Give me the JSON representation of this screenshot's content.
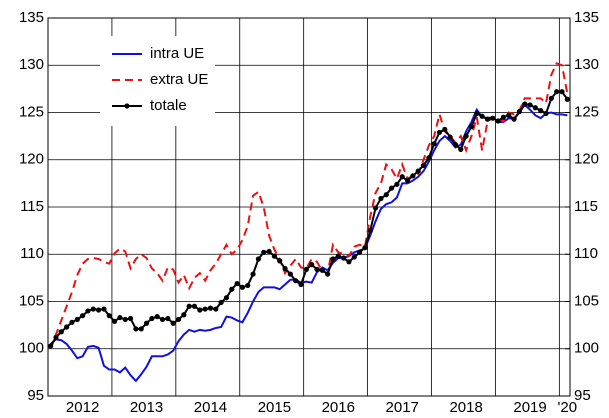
{
  "chart_data": {
    "type": "line",
    "categories": [
      null,
      null,
      null,
      null,
      null,
      null,
      "2012",
      null,
      null,
      null,
      null,
      null,
      null,
      null,
      null,
      null,
      null,
      null,
      "2013",
      null,
      null,
      null,
      null,
      null,
      null,
      null,
      null,
      null,
      null,
      null,
      "2014",
      null,
      null,
      null,
      null,
      null,
      null,
      null,
      null,
      null,
      null,
      null,
      "2015",
      null,
      null,
      null,
      null,
      null,
      null,
      null,
      null,
      null,
      null,
      null,
      "2016",
      null,
      null,
      null,
      null,
      null,
      null,
      null,
      null,
      null,
      null,
      null,
      "2017",
      null,
      null,
      null,
      null,
      null,
      null,
      null,
      null,
      null,
      null,
      null,
      "2018",
      null,
      null,
      null,
      null,
      null,
      null,
      null,
      null,
      null,
      null,
      null,
      "2019",
      null,
      null,
      null,
      null,
      null,
      null,
      "'20"
    ],
    "series": [
      {
        "name": "intra UE",
        "color": "#1010e0",
        "line_style": "solid",
        "marker": "none",
        "values": [
          100.5,
          101.0,
          100.9,
          100.5,
          99.8,
          99.0,
          99.2,
          100.2,
          100.3,
          100.1,
          98.2,
          97.8,
          97.8,
          97.5,
          98.0,
          97.2,
          96.6,
          97.3,
          98.1,
          99.2,
          99.2,
          99.2,
          99.4,
          99.8,
          100.8,
          101.5,
          102.0,
          101.8,
          102.0,
          101.9,
          102.0,
          102.2,
          102.3,
          103.4,
          103.3,
          103.0,
          102.8,
          103.8,
          105.0,
          106.0,
          106.5,
          106.5,
          106.5,
          106.3,
          106.8,
          107.3,
          107.3,
          107.0,
          107.1,
          107.0,
          108.1,
          108.6,
          108.3,
          109.1,
          109.6,
          109.6,
          109.8,
          110.2,
          110.4,
          110.6,
          112.0,
          113.5,
          114.8,
          115.3,
          115.5,
          116.0,
          117.5,
          117.5,
          117.8,
          118.2,
          118.8,
          119.8,
          121.0,
          122.0,
          122.5,
          122.0,
          121.3,
          121.6,
          123.0,
          124.0,
          125.3,
          124.5,
          124.4,
          124.5,
          124.0,
          124.0,
          124.4,
          124.3,
          125.0,
          125.8,
          125.3,
          124.7,
          124.4,
          124.9,
          125.0,
          124.8,
          124.8,
          124.7
        ]
      },
      {
        "name": "extra UE",
        "color": "#e81010",
        "line_style": "dashed",
        "marker": "none",
        "values": [
          100.0,
          101.5,
          103.0,
          104.5,
          106.0,
          107.8,
          109.0,
          109.5,
          109.6,
          109.5,
          109.2,
          109.0,
          110.1,
          110.6,
          110.3,
          108.5,
          109.5,
          110.0,
          109.6,
          108.5,
          108.0,
          107.2,
          108.6,
          108.4,
          107.0,
          107.8,
          106.4,
          107.5,
          108.0,
          107.2,
          108.3,
          109.0,
          110.0,
          111.0,
          110.0,
          110.5,
          111.5,
          113.0,
          116.2,
          116.6,
          115.0,
          112.0,
          110.5,
          109.5,
          108.0,
          108.8,
          109.5,
          108.6,
          108.5,
          109.5,
          109.2,
          108.2,
          108.0,
          111.0,
          110.2,
          110.0,
          109.8,
          110.8,
          111.0,
          110.8,
          114.0,
          116.5,
          117.5,
          119.5,
          119.0,
          118.0,
          119.5,
          118.0,
          118.3,
          118.5,
          120.0,
          121.5,
          122.5,
          124.8,
          123.0,
          122.5,
          121.8,
          122.5,
          121.0,
          122.5,
          124.5,
          121.0,
          124.0,
          124.5,
          124.5,
          124.0,
          125.0,
          124.8,
          125.2,
          126.5,
          126.5,
          126.5,
          126.5,
          126.0,
          129.0,
          130.2,
          130.0,
          127.0
        ]
      },
      {
        "name": "totale",
        "color": "#000000",
        "line_style": "solid",
        "marker": "circle",
        "values": [
          100.3,
          101.2,
          101.8,
          102.3,
          102.8,
          103.1,
          103.5,
          104.0,
          104.2,
          104.1,
          104.2,
          103.5,
          102.9,
          103.3,
          103.1,
          103.2,
          102.1,
          102.1,
          102.7,
          103.2,
          103.4,
          103.1,
          103.2,
          102.7,
          103.1,
          103.6,
          104.5,
          104.5,
          104.1,
          104.2,
          104.3,
          104.2,
          104.9,
          105.4,
          106.3,
          106.9,
          106.5,
          106.7,
          107.9,
          109.5,
          110.2,
          110.3,
          109.8,
          109.3,
          108.5,
          107.9,
          107.2,
          106.8,
          108.4,
          108.9,
          108.4,
          108.3,
          107.9,
          109.5,
          109.8,
          109.6,
          109.2,
          109.7,
          110.2,
          110.7,
          112.5,
          114.9,
          115.9,
          116.3,
          117.0,
          117.4,
          118.2,
          117.8,
          118.3,
          118.8,
          119.4,
          120.2,
          121.7,
          122.9,
          123.2,
          122.4,
          121.6,
          121.1,
          122.5,
          123.5,
          124.9,
          124.6,
          124.3,
          124.4,
          124.1,
          124.5,
          124.7,
          124.3,
          125.1,
          125.9,
          125.8,
          125.5,
          125.2,
          124.9,
          126.5,
          127.2,
          127.2,
          126.4
        ]
      }
    ],
    "ylim": [
      95,
      135
    ],
    "yticks": [
      95,
      100,
      105,
      110,
      115,
      120,
      125,
      130,
      135
    ],
    "y2lim": [
      95,
      135
    ],
    "y2ticks": [
      95,
      100,
      105,
      110,
      115,
      120,
      125,
      130,
      135
    ],
    "grid": true,
    "legend": "upper left"
  }
}
